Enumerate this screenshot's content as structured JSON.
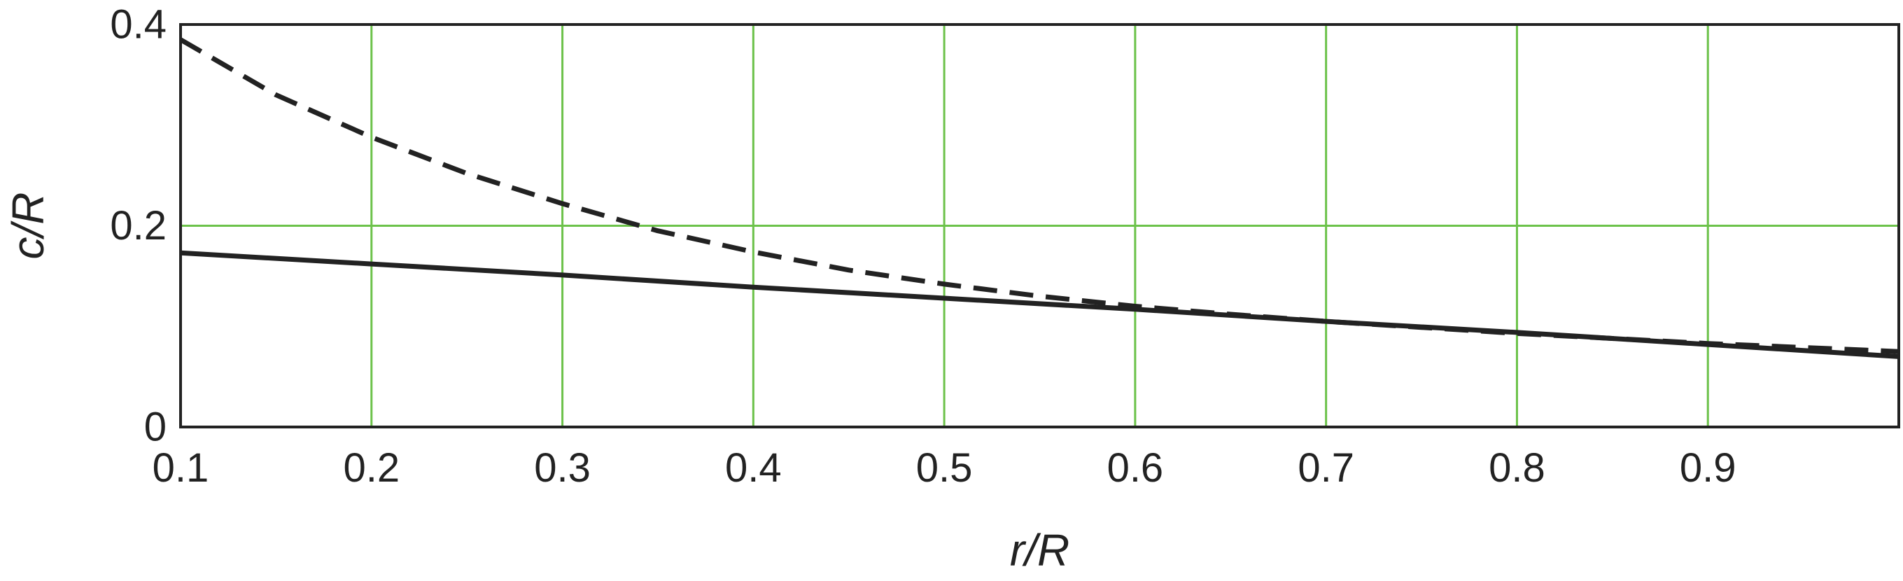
{
  "chart_data": {
    "type": "line",
    "title": "",
    "xlabel": "r/R",
    "ylabel": "c/R",
    "xlim": [
      0.1,
      1.0
    ],
    "ylim": [
      0,
      0.4
    ],
    "x_ticks": [
      {
        "value": 0.1,
        "label": "0.1"
      },
      {
        "value": 0.2,
        "label": "0.2"
      },
      {
        "value": 0.3,
        "label": "0.3"
      },
      {
        "value": 0.4,
        "label": "0.4"
      },
      {
        "value": 0.5,
        "label": "0.5"
      },
      {
        "value": 0.6,
        "label": "0.6"
      },
      {
        "value": 0.7,
        "label": "0.7"
      },
      {
        "value": 0.8,
        "label": "0.8"
      },
      {
        "value": 0.9,
        "label": "0.9"
      }
    ],
    "y_ticks": [
      {
        "value": 0,
        "label": "0"
      },
      {
        "value": 0.2,
        "label": "0.2"
      },
      {
        "value": 0.4,
        "label": "0.4"
      }
    ],
    "grid": true,
    "grid_color": "#6cc24a",
    "legend": false,
    "series": [
      {
        "style": "dashed",
        "color": "#222222",
        "x": [
          0.1,
          0.15,
          0.2,
          0.25,
          0.3,
          0.35,
          0.4,
          0.45,
          0.5,
          0.55,
          0.6,
          0.65,
          0.7,
          0.75,
          0.8,
          0.85,
          0.9,
          0.95,
          1.0
        ],
        "y": [
          0.385,
          0.33,
          0.288,
          0.252,
          0.222,
          0.195,
          0.174,
          0.156,
          0.142,
          0.13,
          0.12,
          0.112,
          0.105,
          0.099,
          0.093,
          0.088,
          0.083,
          0.079,
          0.075
        ]
      },
      {
        "style": "solid",
        "color": "#222222",
        "x": [
          0.1,
          0.2,
          0.3,
          0.4,
          0.5,
          0.6,
          0.7,
          0.8,
          0.9,
          1.0
        ],
        "y": [
          0.173,
          0.162,
          0.151,
          0.139,
          0.128,
          0.117,
          0.105,
          0.094,
          0.082,
          0.07
        ]
      }
    ]
  }
}
